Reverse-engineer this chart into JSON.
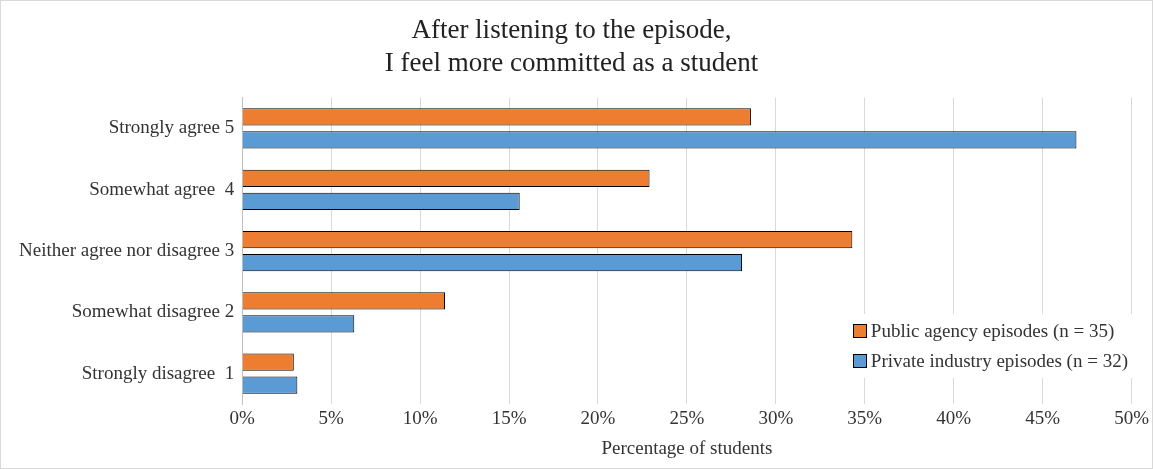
{
  "chart_data": {
    "type": "bar",
    "orientation": "horizontal",
    "title": "After listening to the episode,\nI feel more committed as a student",
    "xlabel": "Percentage of students",
    "categories": [
      "Strongly agree 5",
      "Somewhat agree  4",
      "Neither agree nor disagree 3",
      "Somewhat disagree 2",
      "Strongly disagree  1"
    ],
    "series": [
      {
        "name": "Public agency episodes (n = 35)",
        "color": "#ed7d31",
        "values": [
          28.6,
          22.9,
          34.3,
          11.4,
          2.9
        ]
      },
      {
        "name": "Private industry episodes (n = 32)",
        "color": "#5b9bd5",
        "values": [
          46.9,
          15.6,
          28.1,
          6.3,
          3.1
        ]
      }
    ],
    "xlim": [
      0,
      50
    ],
    "xticks": [
      {
        "value": 0,
        "label": "0%"
      },
      {
        "value": 5,
        "label": "5%"
      },
      {
        "value": 10,
        "label": "10%"
      },
      {
        "value": 15,
        "label": "15%"
      },
      {
        "value": 20,
        "label": "20%"
      },
      {
        "value": 25,
        "label": "25%"
      },
      {
        "value": 30,
        "label": "30%"
      },
      {
        "value": 35,
        "label": "35%"
      },
      {
        "value": 40,
        "label": "40%"
      },
      {
        "value": 45,
        "label": "45%"
      },
      {
        "value": 50,
        "label": "50%"
      }
    ],
    "grid": "x",
    "legend": "bottom right"
  }
}
